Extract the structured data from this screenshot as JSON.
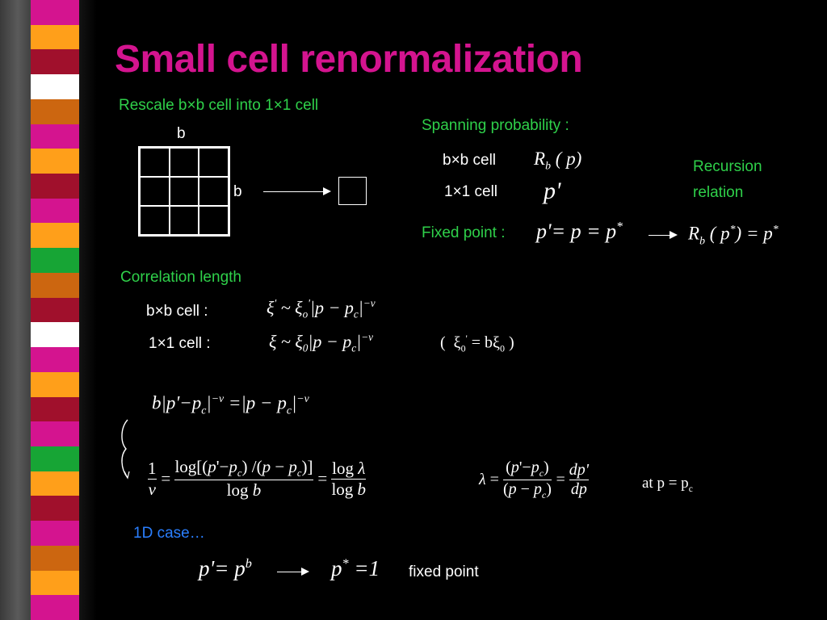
{
  "title": "Small cell renormalization",
  "rescale": "Rescale b×b cell into 1×1 cell",
  "grid_label_top": "b",
  "grid_label_side": "b",
  "spanning_prob": "Spanning probability :",
  "bxb_cell": "b×b cell",
  "one_cell": "1×1 cell",
  "recursion_line1": "Recursion",
  "recursion_line2": "relation",
  "fixed_point_label": "Fixed point :",
  "corr_length": "Correlation length",
  "bxb_cell_colon": "b×b cell :",
  "one_cell_colon": "1×1 cell :",
  "one_d_case": "1D case…",
  "fixed_point_end": "fixed point",
  "at_p_pc": "at p = p",
  "colors": {
    "title": "#d4148f",
    "green": "#2fd04a",
    "blue": "#2a7fff"
  }
}
